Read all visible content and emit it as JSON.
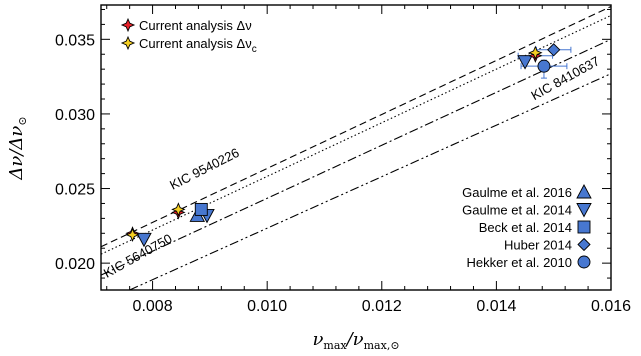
{
  "chart_data": {
    "type": "scatter",
    "xlabel": "νmax/νmax,⊙",
    "ylabel": "Δν/Δν⊙",
    "xlim": [
      0.0071,
      0.016
    ],
    "ylim": [
      0.0182,
      0.0373
    ],
    "x_ticks": [
      0.008,
      0.01,
      0.012,
      0.014,
      0.016
    ],
    "x_tick_labels": [
      "0.008",
      "0.010",
      "0.012",
      "0.014",
      "0.016"
    ],
    "y_ticks": [
      0.02,
      0.025,
      0.03,
      0.035
    ],
    "y_tick_labels": [
      "0.020",
      "0.025",
      "0.030",
      "0.035"
    ],
    "legend_top_left": [
      {
        "label": "Current analysis Δν",
        "marker": "star",
        "color": "#e8222a"
      },
      {
        "label": "Current analysis Δνc",
        "label_main": "Current analysis Δν",
        "label_sub": "c",
        "marker": "star",
        "color": "#f5cf23"
      }
    ],
    "legend_bottom_right": [
      {
        "label": "Gaulme et al. 2016",
        "marker": "triangle-up",
        "color": "#4777d0"
      },
      {
        "label": "Gaulme et al. 2014",
        "marker": "triangle-down",
        "color": "#4777d0"
      },
      {
        "label": "Beck et al. 2014",
        "marker": "square",
        "color": "#4777d0"
      },
      {
        "label": "Huber 2014",
        "marker": "diamond",
        "color": "#4777d0"
      },
      {
        "label": "Hekker et al. 2010",
        "marker": "circle",
        "color": "#4777d0"
      }
    ],
    "reference_lines": [
      {
        "label": "KIC 9540226",
        "style": "dashed",
        "points": [
          [
            0.0071,
            0.0211
          ],
          [
            0.016,
            0.0372
          ]
        ]
      },
      {
        "label": "",
        "style": "dotted",
        "points": [
          [
            0.0071,
            0.0206
          ],
          [
            0.016,
            0.0366
          ]
        ]
      },
      {
        "label": "KIC 8410637",
        "style": "dashdot",
        "points": [
          [
            0.0071,
            0.0192
          ],
          [
            0.016,
            0.035
          ]
        ]
      },
      {
        "label": "KIC 5640750",
        "style": "dashdotdot",
        "points": [
          [
            0.0076,
            0.0182
          ],
          [
            0.016,
            0.0327
          ]
        ]
      }
    ],
    "series": [
      {
        "name": "Current analysis Δν",
        "marker": "star",
        "color": "#e8222a",
        "points": [
          [
            0.00765,
            0.022
          ],
          [
            0.00845,
            0.0234
          ],
          [
            0.01468,
            0.0339
          ]
        ]
      },
      {
        "name": "Current analysis Δνc",
        "marker": "star",
        "color": "#f5cf23",
        "points": [
          [
            0.00765,
            0.0219
          ],
          [
            0.00845,
            0.0236
          ],
          [
            0.01468,
            0.0341
          ]
        ]
      },
      {
        "name": "Gaulme et al. 2016",
        "marker": "triangle-up",
        "color": "#4777d0",
        "points": [
          [
            0.00878,
            0.0232
          ]
        ]
      },
      {
        "name": "Gaulme et al. 2014",
        "marker": "triangle-down",
        "color": "#4777d0",
        "points": [
          [
            0.00785,
            0.0216
          ],
          [
            0.00895,
            0.0232
          ],
          [
            0.0145,
            0.0335
          ]
        ]
      },
      {
        "name": "Beck et al. 2014",
        "marker": "square",
        "color": "#4777d0",
        "points": [
          [
            0.00885,
            0.0236
          ]
        ]
      },
      {
        "name": "Huber 2014",
        "marker": "diamond",
        "color": "#4777d0",
        "points": [
          [
            0.015,
            0.0343
          ]
        ]
      },
      {
        "name": "Hekker et al. 2010",
        "marker": "circle",
        "color": "#4777d0",
        "points": [
          [
            0.01483,
            0.0332
          ]
        ]
      }
    ],
    "error_bars": [
      {
        "x": 0.01468,
        "y": 0.0339,
        "xerr": [
          0.0003,
          0.0003
        ]
      },
      {
        "x": 0.01483,
        "y": 0.0332,
        "xerr": [
          0.0004,
          0.0004
        ],
        "yerr": [
          0.0008,
          0.0004
        ]
      },
      {
        "x": 0.015,
        "y": 0.0343,
        "xerr": [
          0.0003,
          0.0003
        ]
      }
    ],
    "annotations": [
      {
        "text": "KIC 9540226",
        "x": 0.00835,
        "y": 0.0249,
        "angle": -27
      },
      {
        "text": "KIC 5640750",
        "x": 0.0072,
        "y": 0.019,
        "angle": -29
      },
      {
        "text": "KIC 8410637",
        "x": 0.01466,
        "y": 0.0309,
        "angle": -29
      }
    ]
  }
}
